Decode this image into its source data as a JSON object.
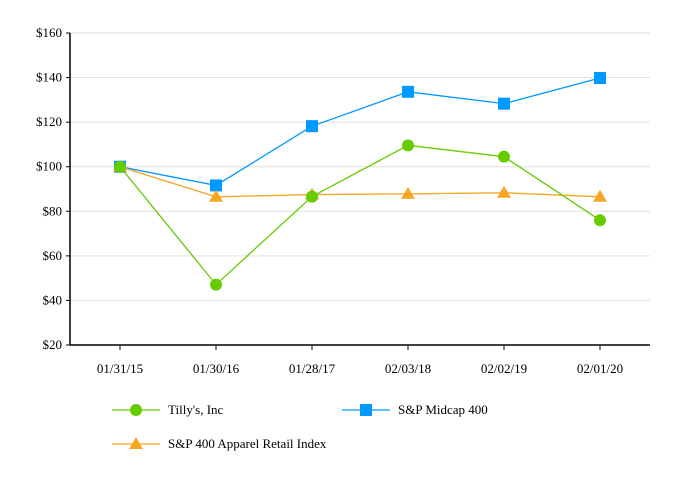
{
  "chart_data": {
    "type": "line",
    "title": "",
    "xlabel": "",
    "ylabel": "",
    "categories": [
      "01/31/15",
      "01/30/16",
      "01/28/17",
      "02/03/18",
      "02/02/19",
      "02/01/20"
    ],
    "ylim": [
      20,
      160
    ],
    "yticks": [
      20,
      40,
      60,
      80,
      100,
      120,
      140,
      160
    ],
    "ytick_labels": [
      "$20",
      "$40",
      "$60",
      "$80",
      "$100",
      "$120",
      "$140",
      "$160"
    ],
    "grid": true,
    "legend_position": "bottom",
    "series": [
      {
        "name": "Tilly's, Inc",
        "color": "#66cc00",
        "marker": "circle",
        "values": [
          100,
          47.1,
          86.6,
          109.6,
          104.5,
          76.0
        ]
      },
      {
        "name": "S&P Midcap 400",
        "color": "#0099ff",
        "marker": "square",
        "values": [
          100,
          91.6,
          118.2,
          133.6,
          128.3,
          139.8
        ]
      },
      {
        "name": "S&P 400 Apparel Retail Index",
        "color": "#f5a623",
        "marker": "triangle",
        "values": [
          100,
          86.5,
          87.5,
          87.8,
          88.3,
          86.5
        ]
      }
    ]
  }
}
